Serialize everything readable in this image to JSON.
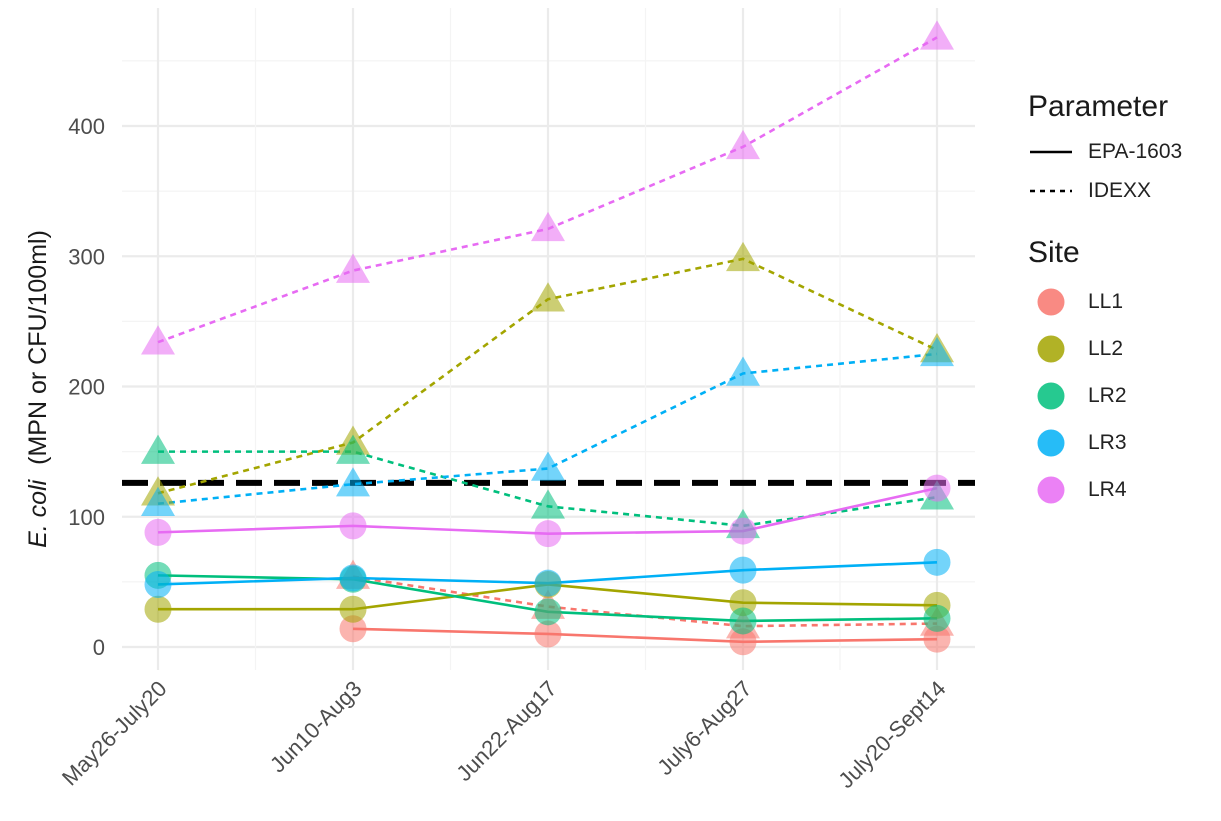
{
  "chart_data": {
    "type": "line",
    "categories": [
      "May26-July20",
      "Jun10-Aug3",
      "Jun22-Aug17",
      "July6-Aug27",
      "July20-Sept14"
    ],
    "ylabel_italic": "E. coli",
    "ylabel_rest": "(MPN or CFU/100ml)",
    "xlabel": "",
    "ylim": [
      -15,
      475
    ],
    "yticks": [
      0,
      100,
      200,
      300,
      400
    ],
    "reference_line": 126,
    "grid": true,
    "legend_position": "right",
    "series": [
      {
        "site": "LL1",
        "parameter": "EPA-1603",
        "color": "#F8766D",
        "values": [
          null,
          14,
          10,
          4,
          6
        ]
      },
      {
        "site": "LL1",
        "parameter": "IDEXX",
        "color": "#F8766D",
        "values": [
          null,
          54,
          31,
          16,
          18
        ]
      },
      {
        "site": "LL2",
        "parameter": "EPA-1603",
        "color": "#A3A500",
        "values": [
          29,
          29,
          48,
          34,
          32
        ]
      },
      {
        "site": "LL2",
        "parameter": "IDEXX",
        "color": "#A3A500",
        "values": [
          118,
          157,
          267,
          298,
          228
        ]
      },
      {
        "site": "LR2",
        "parameter": "EPA-1603",
        "color": "#00BF7D",
        "values": [
          55,
          52,
          27,
          20,
          22
        ]
      },
      {
        "site": "LR2",
        "parameter": "IDEXX",
        "color": "#00BF7D",
        "values": [
          150,
          150,
          108,
          93,
          115
        ]
      },
      {
        "site": "LR3",
        "parameter": "EPA-1603",
        "color": "#00B0F6",
        "values": [
          48,
          53,
          49,
          59,
          65
        ]
      },
      {
        "site": "LR3",
        "parameter": "IDEXX",
        "color": "#00B0F6",
        "values": [
          110,
          125,
          137,
          210,
          225
        ]
      },
      {
        "site": "LR4",
        "parameter": "EPA-1603",
        "color": "#E76BF3",
        "values": [
          88,
          93,
          87,
          89,
          122
        ]
      },
      {
        "site": "LR4",
        "parameter": "IDEXX",
        "color": "#E76BF3",
        "values": [
          234,
          289,
          321,
          384,
          468
        ]
      }
    ],
    "legend": {
      "parameter_title": "Parameter",
      "parameter_items": [
        {
          "label": "EPA-1603",
          "style": "solid"
        },
        {
          "label": "IDEXX",
          "style": "dashed"
        }
      ],
      "site_title": "Site",
      "site_items": [
        {
          "label": "LL1",
          "color": "#F8766D"
        },
        {
          "label": "LL2",
          "color": "#A3A500"
        },
        {
          "label": "LR2",
          "color": "#00BF7D"
        },
        {
          "label": "LR3",
          "color": "#00B0F6"
        },
        {
          "label": "LR4",
          "color": "#E76BF3"
        }
      ]
    }
  }
}
